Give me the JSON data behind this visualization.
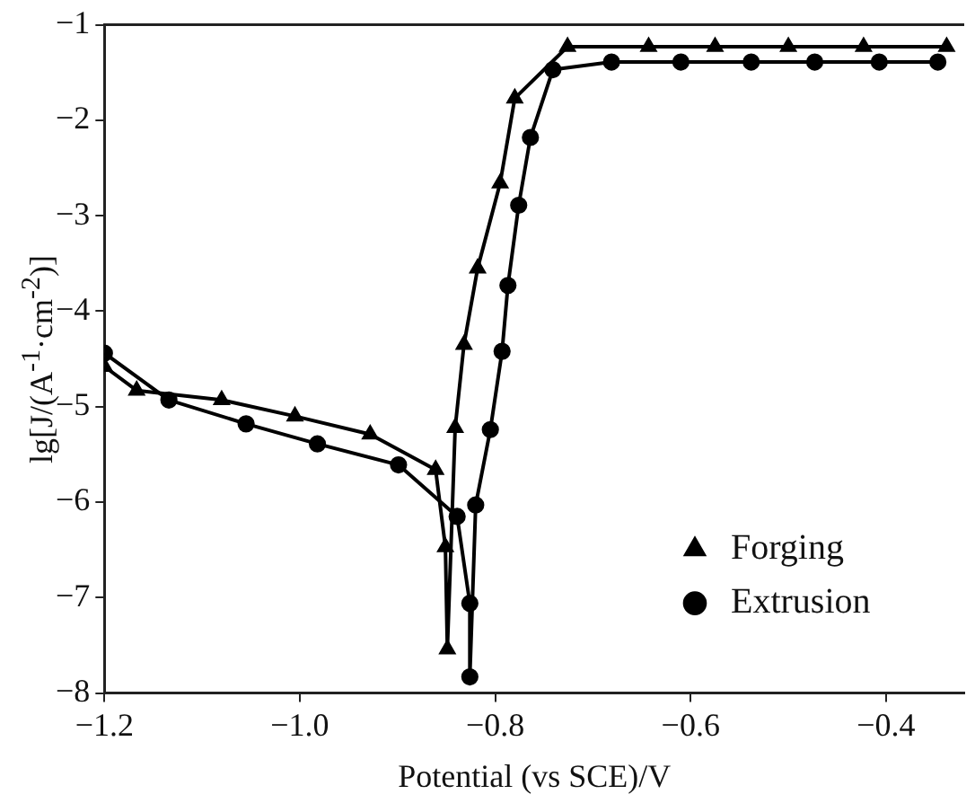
{
  "chart_data": {
    "type": "line",
    "xlabel": "Potential (vs SCE)/V",
    "ylabel": "lg[J/(A$^{-1}$·cm$^{-2}$)]",
    "xlim": [
      -1.2,
      -0.32
    ],
    "xticks": [
      {
        "value": -1.2,
        "label": "−1.2"
      },
      {
        "value": -1.0,
        "label": "−1.0"
      },
      {
        "value": -0.8,
        "label": "−0.8"
      },
      {
        "value": -0.6,
        "label": "−0.6"
      },
      {
        "value": -0.4,
        "label": "−0.4"
      }
    ],
    "ylim": [
      -8,
      -1
    ],
    "yticks": [
      {
        "value": -8,
        "label": "−8"
      },
      {
        "value": -7,
        "label": "−7"
      },
      {
        "value": -6,
        "label": "−6"
      },
      {
        "value": -5,
        "label": "−5"
      },
      {
        "value": -4,
        "label": "−4"
      },
      {
        "value": -3,
        "label": "−3"
      },
      {
        "value": -2,
        "label": "−2"
      },
      {
        "value": -1,
        "label": "−1"
      }
    ],
    "grid": false,
    "legend": "bottom right",
    "series": [
      {
        "name": "Forging",
        "color": "#000000",
        "marker": "triangle",
        "x": [
          -1.2,
          -1.167,
          -1.08,
          -1.005,
          -0.928,
          -0.861,
          -0.851,
          -0.849,
          -0.841,
          -0.832,
          -0.818,
          -0.795,
          -0.78,
          -0.726,
          -0.643,
          -0.575,
          -0.5,
          -0.423,
          -0.338
        ],
        "values": [
          -4.58,
          -4.83,
          -4.93,
          -5.1,
          -5.29,
          -5.66,
          -6.47,
          -7.54,
          -5.22,
          -4.35,
          -3.55,
          -2.66,
          -1.77,
          -1.23,
          -1.23,
          -1.23,
          -1.23,
          -1.23,
          -1.23
        ]
      },
      {
        "name": "Extrusion",
        "color": "#000000",
        "marker": "circle",
        "x": [
          -1.2,
          -1.134,
          -1.055,
          -0.982,
          -0.899,
          -0.839,
          -0.826,
          -0.826,
          -0.82,
          -0.805,
          -0.793,
          -0.787,
          -0.776,
          -0.764,
          -0.741,
          -0.681,
          -0.61,
          -0.538,
          -0.473,
          -0.407,
          -0.347
        ],
        "values": [
          -4.44,
          -4.93,
          -5.18,
          -5.39,
          -5.61,
          -6.15,
          -7.06,
          -7.83,
          -6.03,
          -5.24,
          -4.42,
          -3.73,
          -2.89,
          -2.18,
          -1.47,
          -1.39,
          -1.39,
          -1.39,
          -1.39,
          -1.39,
          -1.39
        ]
      }
    ]
  }
}
